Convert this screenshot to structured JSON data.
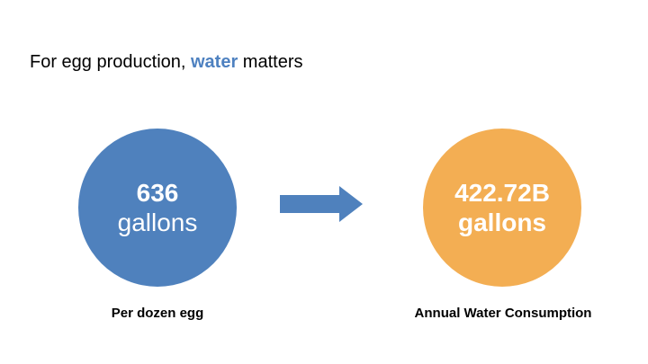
{
  "headline": {
    "prefix": "For egg production, ",
    "accent": "water",
    "suffix": " matters",
    "accent_color": "#4e81c0"
  },
  "left_circle": {
    "value": "636",
    "unit": "gallons",
    "color": "#4f81bd"
  },
  "right_circle": {
    "value": "422.72B",
    "unit": "gallons",
    "color": "#f3ae53"
  },
  "arrow": {
    "icon": "right-arrow-icon",
    "color": "#4f81bd"
  },
  "captions": {
    "left": "Per dozen egg",
    "right": "Annual Water Consumption"
  }
}
